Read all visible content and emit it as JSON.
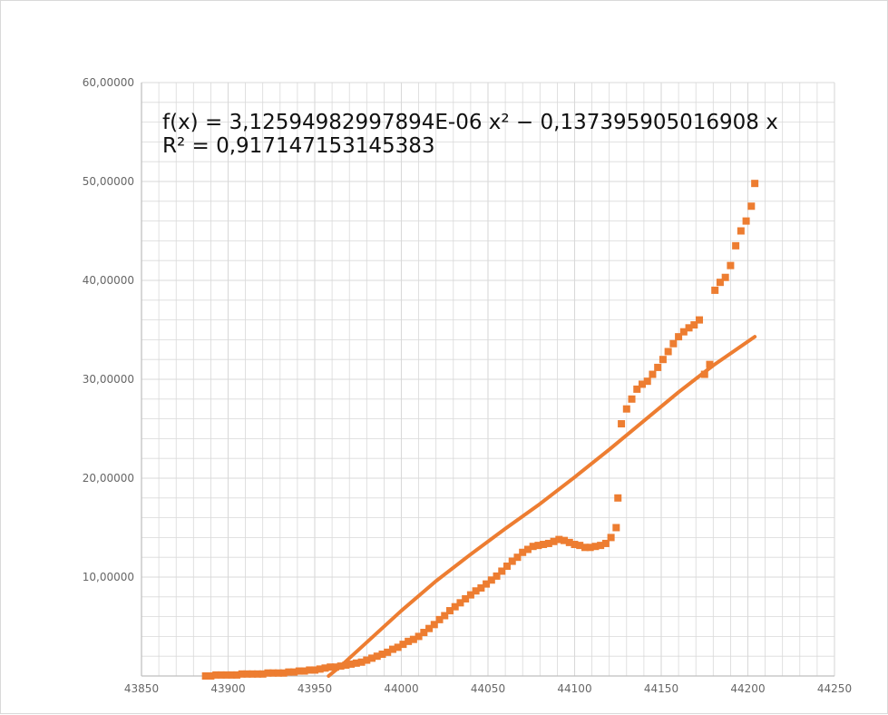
{
  "chart_data": {
    "type": "scatter",
    "title": "",
    "xlabel": "",
    "ylabel": "",
    "xlim": [
      43850,
      44250
    ],
    "ylim": [
      0,
      60
    ],
    "grid": true,
    "x_ticks": [
      43850,
      43900,
      43950,
      44000,
      44050,
      44100,
      44150,
      44200,
      44250
    ],
    "y_ticks": [
      0,
      10,
      20,
      30,
      40,
      50,
      60
    ],
    "x_tick_labels": [
      "43850",
      "43900",
      "43950",
      "44000",
      "44050",
      "44100",
      "44150",
      "44200",
      "44250"
    ],
    "y_tick_labels": [
      "",
      "10,00000",
      "20,00000",
      "30,00000",
      "40,00000",
      "50,00000",
      "60,00000"
    ],
    "annotations": [
      "f(x) = 3,12594982997894E-06 x² − 0,137395905016908 x",
      "R² = 0,917147153145383"
    ],
    "colors": {
      "points": "#ed7d31",
      "trendline": "#ed7d31",
      "grid": "#d9d9d9",
      "axis": "#bfbfbf"
    },
    "series": [
      {
        "kind": "points",
        "values": [
          [
            43887,
            0.0
          ],
          [
            43890,
            0.0
          ],
          [
            43893,
            0.1
          ],
          [
            43896,
            0.1
          ],
          [
            43899,
            0.1
          ],
          [
            43902,
            0.1
          ],
          [
            43905,
            0.1
          ],
          [
            43908,
            0.2
          ],
          [
            43911,
            0.2
          ],
          [
            43914,
            0.2
          ],
          [
            43917,
            0.2
          ],
          [
            43920,
            0.2
          ],
          [
            43923,
            0.3
          ],
          [
            43926,
            0.3
          ],
          [
            43929,
            0.3
          ],
          [
            43932,
            0.3
          ],
          [
            43935,
            0.4
          ],
          [
            43938,
            0.4
          ],
          [
            43941,
            0.5
          ],
          [
            43944,
            0.5
          ],
          [
            43947,
            0.6
          ],
          [
            43950,
            0.6
          ],
          [
            43953,
            0.7
          ],
          [
            43956,
            0.8
          ],
          [
            43959,
            0.9
          ],
          [
            43962,
            0.9
          ],
          [
            43965,
            1.0
          ],
          [
            43968,
            1.1
          ],
          [
            43971,
            1.2
          ],
          [
            43974,
            1.3
          ],
          [
            43977,
            1.4
          ],
          [
            43980,
            1.6
          ],
          [
            43983,
            1.8
          ],
          [
            43986,
            2.0
          ],
          [
            43989,
            2.2
          ],
          [
            43992,
            2.4
          ],
          [
            43995,
            2.7
          ],
          [
            43998,
            2.9
          ],
          [
            44001,
            3.2
          ],
          [
            44004,
            3.5
          ],
          [
            44007,
            3.7
          ],
          [
            44010,
            4.0
          ],
          [
            44013,
            4.4
          ],
          [
            44016,
            4.8
          ],
          [
            44019,
            5.2
          ],
          [
            44022,
            5.7
          ],
          [
            44025,
            6.1
          ],
          [
            44028,
            6.6
          ],
          [
            44031,
            7.0
          ],
          [
            44034,
            7.4
          ],
          [
            44037,
            7.8
          ],
          [
            44040,
            8.2
          ],
          [
            44043,
            8.6
          ],
          [
            44046,
            8.9
          ],
          [
            44049,
            9.3
          ],
          [
            44052,
            9.7
          ],
          [
            44055,
            10.1
          ],
          [
            44058,
            10.6
          ],
          [
            44061,
            11.1
          ],
          [
            44064,
            11.6
          ],
          [
            44067,
            12.0
          ],
          [
            44070,
            12.5
          ],
          [
            44073,
            12.8
          ],
          [
            44076,
            13.1
          ],
          [
            44079,
            13.2
          ],
          [
            44082,
            13.3
          ],
          [
            44085,
            13.4
          ],
          [
            44088,
            13.6
          ],
          [
            44091,
            13.8
          ],
          [
            44094,
            13.7
          ],
          [
            44097,
            13.5
          ],
          [
            44100,
            13.3
          ],
          [
            44103,
            13.2
          ],
          [
            44106,
            13.0
          ],
          [
            44109,
            13.0
          ],
          [
            44112,
            13.1
          ],
          [
            44115,
            13.2
          ],
          [
            44118,
            13.4
          ],
          [
            44121,
            14.0
          ],
          [
            44124,
            15.0
          ],
          [
            44125,
            18.0
          ],
          [
            44127,
            25.5
          ],
          [
            44130,
            27.0
          ],
          [
            44133,
            28.0
          ],
          [
            44136,
            29.0
          ],
          [
            44139,
            29.5
          ],
          [
            44142,
            29.8
          ],
          [
            44145,
            30.5
          ],
          [
            44148,
            31.2
          ],
          [
            44151,
            32.0
          ],
          [
            44154,
            32.8
          ],
          [
            44157,
            33.6
          ],
          [
            44160,
            34.3
          ],
          [
            44163,
            34.8
          ],
          [
            44166,
            35.2
          ],
          [
            44169,
            35.5
          ],
          [
            44172,
            36.0
          ],
          [
            44175,
            30.5
          ],
          [
            44178,
            31.5
          ],
          [
            44181,
            39.0
          ],
          [
            44184,
            39.8
          ],
          [
            44187,
            40.3
          ],
          [
            44190,
            41.5
          ],
          [
            44193,
            43.5
          ],
          [
            44196,
            45.0
          ],
          [
            44199,
            46.0
          ],
          [
            44202,
            47.5
          ],
          [
            44204,
            49.8
          ]
        ]
      },
      {
        "kind": "trendline",
        "values": [
          [
            43958,
            0.0
          ],
          [
            43965,
            1.0
          ],
          [
            43980,
            3.4
          ],
          [
            44000,
            6.6
          ],
          [
            44020,
            9.6
          ],
          [
            44040,
            12.3
          ],
          [
            44060,
            14.9
          ],
          [
            44080,
            17.4
          ],
          [
            44100,
            20.1
          ],
          [
            44120,
            22.9
          ],
          [
            44140,
            25.8
          ],
          [
            44160,
            28.7
          ],
          [
            44180,
            31.4
          ],
          [
            44204,
            34.3
          ]
        ]
      }
    ]
  }
}
